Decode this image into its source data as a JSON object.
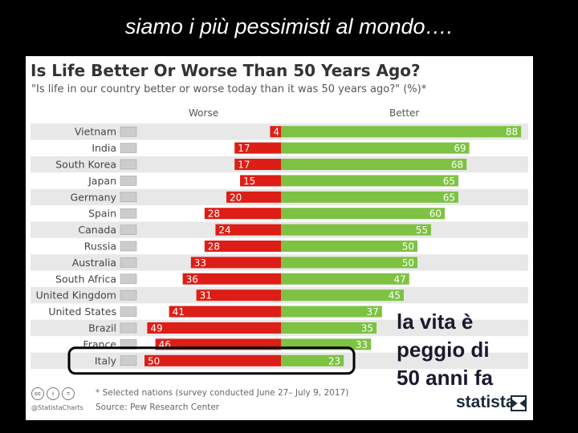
{
  "slide": {
    "title": "siamo i più pessimisti al mondo…."
  },
  "chart_data": {
    "type": "bar",
    "title": "Is Life Better Or Worse Than 50 Years Ago?",
    "subtitle": "\"Is life in our country better or worse today than it was 50 years ago?\" (%)*",
    "left_label": "Worse",
    "right_label": "Better",
    "categories": [
      "Vietnam",
      "India",
      "South Korea",
      "Japan",
      "Germany",
      "Spain",
      "Canada",
      "Russia",
      "Australia",
      "South Africa",
      "United Kingdom",
      "United States",
      "Brazil",
      "France",
      "Italy"
    ],
    "series": [
      {
        "name": "Worse",
        "values": [
          4,
          17,
          17,
          15,
          20,
          28,
          24,
          28,
          33,
          36,
          31,
          41,
          49,
          46,
          50
        ]
      },
      {
        "name": "Better",
        "values": [
          88,
          69,
          68,
          65,
          65,
          60,
          55,
          50,
          50,
          47,
          45,
          37,
          35,
          33,
          23
        ]
      }
    ],
    "highlighted_category": "Italy",
    "colors": {
      "worse": "#dd1e16",
      "better": "#7dc242",
      "row_alt": "#e8e8e8"
    }
  },
  "annotation": {
    "line1": "la vita è",
    "line2": "peggio di",
    "line3": "50 anni fa"
  },
  "footer": {
    "footnote": "* Selected nations (survey conducted June 27– July 9, 2017)",
    "source": "Source: Pew Research Center",
    "handle": "@StatistaCharts",
    "brand": "statista",
    "cc_icons": [
      "cc",
      "by",
      "nd"
    ]
  }
}
